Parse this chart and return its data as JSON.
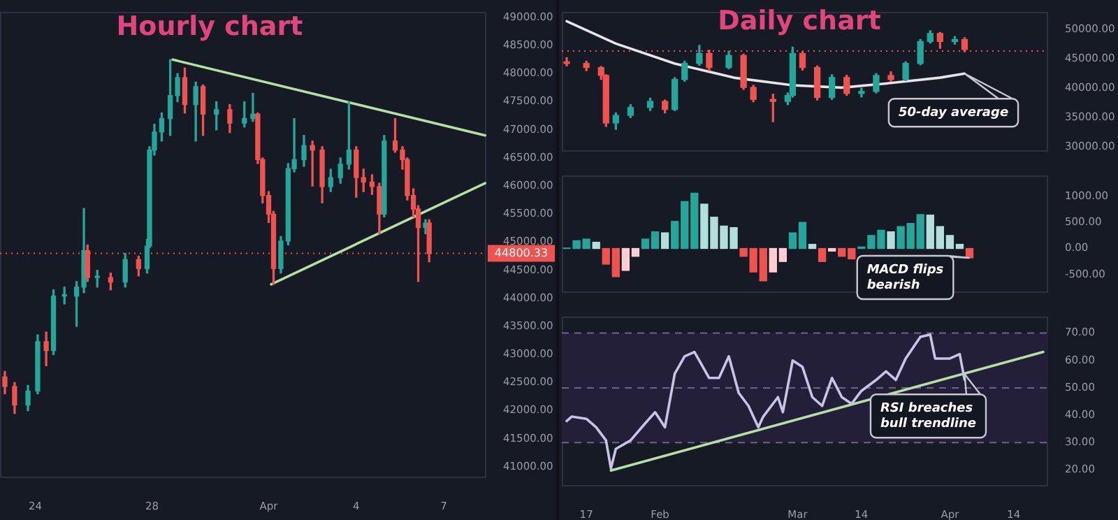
{
  "chart_data": [
    {
      "type": "candlestick",
      "title": "Hourly chart",
      "xlim": [
        "--03-22T19:00",
        "--04-08T11:00"
      ],
      "xticks": [
        {
          "value": "--03-24",
          "label": "24"
        },
        {
          "value": "--03-28",
          "label": "28"
        },
        {
          "value": "--04-01",
          "label": "Apr"
        },
        {
          "value": "--04-04",
          "label": "4"
        },
        {
          "value": "--04-07",
          "label": "7"
        }
      ],
      "ylim": [
        40800,
        49100
      ],
      "yticks": [
        {
          "value": 49000,
          "label": "49000.00"
        },
        {
          "value": 48500,
          "label": "48500.00"
        },
        {
          "value": 48000,
          "label": "48000.00"
        },
        {
          "value": 47500,
          "label": "47500.00"
        },
        {
          "value": 47000,
          "label": "47000.00"
        },
        {
          "value": 46500,
          "label": "46500.00"
        },
        {
          "value": 46000,
          "label": "46000.00"
        },
        {
          "value": 45500,
          "label": "45500.00"
        },
        {
          "value": 45000,
          "label": "45000.00"
        },
        {
          "value": 44500,
          "label": "44500.00"
        },
        {
          "value": 44000,
          "label": "44000.00"
        },
        {
          "value": 43500,
          "label": "43500.00"
        },
        {
          "value": 43000,
          "label": "43000.00"
        },
        {
          "value": 42500,
          "label": "42500.00"
        },
        {
          "value": 42000,
          "label": "42000.00"
        },
        {
          "value": 41500,
          "label": "41500.00"
        },
        {
          "value": 41000,
          "label": "41000.00"
        }
      ],
      "ref_lines": [
        {
          "axis": "y",
          "value": 44800.33,
          "label": "44800.33",
          "color": "#ef5350",
          "line_style": "dotted"
        }
      ],
      "series": [
        {
          "x": [
            "--03-22T23:00",
            "--03-23T07:00",
            "--03-23T18:00",
            "--03-24T02:00",
            "--03-24T09:00",
            "--03-24T15:00",
            "--03-25T00:00",
            "--03-25T10:00",
            "--03-25T16:00",
            "--03-25T19:00",
            "--03-26T03:00",
            "--03-26T14:00",
            "--03-27T02:00",
            "--03-27T13:00",
            "--03-27T20:00",
            "--03-27T22:00",
            "--03-28T02:00",
            "--03-28T08:00",
            "--03-28T15:00",
            "--03-28T21:00",
            "--03-29T03:00",
            "--03-29T12:00",
            "--03-29T18:00",
            "--03-30T05:00",
            "--03-30T16:00",
            "--03-31T04:00",
            "--03-31T11:00",
            "--03-31T15:00",
            "--03-31T19:00",
            "--04-01T00:00",
            "--04-01T04:00",
            "--04-01T10:00",
            "--04-01T16:00",
            "--04-01T21:00",
            "--04-02T05:00",
            "--04-02T12:00",
            "--04-02T20:00",
            "--04-03T03:00",
            "--04-03T11:00",
            "--04-03T18:00",
            "--04-04T00:00",
            "--04-04T06:00",
            "--04-04T13:00",
            "--04-04T19:00",
            "--04-04T23:00",
            "--04-05T08:00",
            "--04-05T14:00",
            "--04-05T18:00",
            "--04-05T23:00",
            "--04-06T03:00",
            "--04-06T09:00",
            "--04-06T12:00"
          ],
          "ohlc": [
            [
              42600,
              42700,
              42300,
              42430
            ],
            [
              42430,
              42500,
              41950,
              42100
            ],
            [
              42100,
              42450,
              42000,
              42350
            ],
            [
              42350,
              43350,
              42300,
              43230
            ],
            [
              43230,
              43400,
              42800,
              43070
            ],
            [
              43070,
              44150,
              43000,
              44040
            ],
            [
              44040,
              44200,
              43900,
              44040
            ],
            [
              44040,
              44300,
              43500,
              44200
            ],
            [
              44200,
              45600,
              44100,
              44850
            ],
            [
              44850,
              44950,
              44300,
              44370
            ],
            [
              44370,
              44500,
              44200,
              44370
            ],
            [
              44370,
              44450,
              44150,
              44290
            ],
            [
              44290,
              44800,
              44200,
              44690
            ],
            [
              44690,
              44750,
              44400,
              44530
            ],
            [
              44530,
              45050,
              44450,
              44930
            ],
            [
              44930,
              46700,
              44900,
              46640
            ],
            [
              46640,
              47100,
              46550,
              46960
            ],
            [
              46960,
              47300,
              46800,
              47200
            ],
            [
              47200,
              48250,
              46900,
              47610
            ],
            [
              47610,
              48000,
              47500,
              47930
            ],
            [
              47930,
              48100,
              47300,
              47450
            ],
            [
              47450,
              47850,
              46800,
              47770
            ],
            [
              47770,
              47800,
              46900,
              47280
            ],
            [
              47280,
              47500,
              47000,
              47360
            ],
            [
              47360,
              47450,
              46950,
              47120
            ],
            [
              47120,
              47500,
              47050,
              47200
            ],
            [
              47200,
              47650,
              47150,
              47280
            ],
            [
              47280,
              47300,
              46400,
              46470
            ],
            [
              46470,
              46500,
              45700,
              45830
            ],
            [
              45830,
              45900,
              45350,
              45500
            ],
            [
              45500,
              45550,
              44250,
              44530
            ],
            [
              44530,
              45100,
              44450,
              45020
            ],
            [
              45020,
              46400,
              44950,
              46310
            ],
            [
              46310,
              47200,
              46250,
              46470
            ],
            [
              46470,
              46900,
              46350,
              46720
            ],
            [
              46720,
              46800,
              46000,
              46640
            ],
            [
              46640,
              46700,
              45700,
              45990
            ],
            [
              45990,
              46300,
              45900,
              46150
            ],
            [
              46150,
              46500,
              46050,
              46390
            ],
            [
              46390,
              47500,
              46300,
              46640
            ],
            [
              46640,
              46700,
              45800,
              46150
            ],
            [
              46150,
              46300,
              45900,
              46070
            ],
            [
              46070,
              46200,
              45850,
              45990
            ],
            [
              45990,
              46050,
              45150,
              45500
            ],
            [
              45500,
              46900,
              45450,
              46800
            ],
            [
              46800,
              47200,
              46600,
              46640
            ],
            [
              46640,
              46700,
              46300,
              46470
            ],
            [
              46470,
              46500,
              45750,
              45830
            ],
            [
              45830,
              45950,
              45450,
              45590
            ],
            [
              45590,
              45650,
              44300,
              45260
            ],
            [
              45260,
              45400,
              45150,
              45340
            ],
            [
              45340,
              45400,
              44650,
              44800.33
            ]
          ],
          "colors": [
            "#ef5350",
            "#ef5350",
            "#26a69a",
            "#26a69a",
            "#ef5350",
            "#26a69a",
            "#26a69a",
            "#26a69a",
            "#26a69a",
            "#ef5350",
            "#26a69a",
            "#ef5350",
            "#26a69a",
            "#ef5350",
            "#26a69a",
            "#26a69a",
            "#26a69a",
            "#26a69a",
            "#26a69a",
            "#26a69a",
            "#ef5350",
            "#26a69a",
            "#ef5350",
            "#26a69a",
            "#ef5350",
            "#26a69a",
            "#26a69a",
            "#ef5350",
            "#ef5350",
            "#ef5350",
            "#ef5350",
            "#26a69a",
            "#26a69a",
            "#26a69a",
            "#26a69a",
            "#ef5350",
            "#ef5350",
            "#26a69a",
            "#26a69a",
            "#26a69a",
            "#ef5350",
            "#ef5350",
            "#ef5350",
            "#ef5350",
            "#26a69a",
            "#ef5350",
            "#ef5350",
            "#ef5350",
            "#ef5350",
            "#ef5350",
            "#26a69a",
            "#ef5350"
          ]
        },
        {
          "type": "line",
          "x": [
            "--03-28T17:00",
            "--04-08T10:00"
          ],
          "values": [
            48250,
            46900
          ],
          "color": "#b5e0a4"
        },
        {
          "type": "line",
          "x": [
            "--04-01T02:00",
            "--04-08T10:00"
          ],
          "values": [
            44250,
            46050
          ],
          "color": "#b5e0a4"
        }
      ]
    },
    {
      "type": "candlestick",
      "title": "Daily chart",
      "tick_labels": "y",
      "xlim": [
        "--01-12",
        "--04-21"
      ],
      "ylim": [
        29200,
        53000
      ],
      "yticks": [
        {
          "value": 50000,
          "label": "50000.00"
        },
        {
          "value": 45000,
          "label": "45000.00"
        },
        {
          "value": 40000,
          "label": "40000.00"
        },
        {
          "value": 35000,
          "label": "35000.00"
        },
        {
          "value": 30000,
          "label": "30000.00"
        }
      ],
      "ref_lines": [
        {
          "axis": "y",
          "value": 46330,
          "color": "#ef5350",
          "line_style": "dotted"
        }
      ],
      "annotations": [
        {
          "text": "50-day average",
          "x": "--04-04",
          "y": 42500
        }
      ],
      "series": [
        {
          "x": [
            "--01-13",
            "--01-17",
            "--01-20",
            "--01-21",
            "--01-23",
            "--01-26",
            "--01-30",
            "--02-02",
            "--02-04",
            "--02-06",
            "--02-09",
            "--02-11",
            "--02-15",
            "--02-18",
            "--02-20",
            "--02-24",
            "--02-27",
            "--02-28",
            "--03-02",
            "--03-05",
            "--03-08",
            "--03-11",
            "--03-14",
            "--03-17",
            "--03-20",
            "--03-23",
            "--03-26",
            "--03-28",
            "--03-30",
            "--04-02",
            "--04-04"
          ],
          "ohlc": [
            [
              44500,
              45200,
              43800,
              44220
            ],
            [
              44220,
              44600,
              43000,
              43530
            ],
            [
              43530,
              43700,
              41500,
              42180
            ],
            [
              42180,
              42300,
              33500,
              34080
            ],
            [
              34080,
              35800,
              33000,
              35370
            ],
            [
              35370,
              37200,
              35000,
              36730
            ],
            [
              36730,
              38300,
              36200,
              37760
            ],
            [
              37760,
              38000,
              35800,
              36390
            ],
            [
              36390,
              41800,
              36200,
              41490
            ],
            [
              41490,
              44600,
              41200,
              44220
            ],
            [
              44220,
              47300,
              43900,
              45920
            ],
            [
              45920,
              46500,
              43000,
              43530
            ],
            [
              43530,
              46300,
              43300,
              45580
            ],
            [
              45580,
              45800,
              39800,
              40140
            ],
            [
              40140,
              40500,
              37700,
              38100
            ],
            [
              38100,
              39000,
              34300,
              37760
            ],
            [
              37760,
              39200,
              37200,
              38780
            ],
            [
              38780,
              47000,
              38500,
              45920
            ],
            [
              45920,
              46200,
              43100,
              43530
            ],
            [
              43530,
              43800,
              38000,
              38430
            ],
            [
              38430,
              42300,
              38100,
              41840
            ],
            [
              41840,
              42200,
              38800,
              39120
            ],
            [
              39120,
              40000,
              38500,
              39460
            ],
            [
              39460,
              42500,
              39200,
              42180
            ],
            [
              42180,
              42800,
              41200,
              41490
            ],
            [
              41490,
              44500,
              41300,
              44220
            ],
            [
              44220,
              48300,
              44000,
              47960
            ],
            [
              47960,
              49800,
              47700,
              49330
            ],
            [
              49330,
              49500,
              46800,
              47960
            ],
            [
              47960,
              48800,
              47500,
              48300
            ],
            [
              48300,
              48600,
              46200,
              46590
            ]
          ],
          "colors": [
            "#ef5350",
            "#ef5350",
            "#ef5350",
            "#ef5350",
            "#26a69a",
            "#26a69a",
            "#26a69a",
            "#ef5350",
            "#26a69a",
            "#26a69a",
            "#26a69a",
            "#ef5350",
            "#26a69a",
            "#ef5350",
            "#ef5350",
            "#ef5350",
            "#26a69a",
            "#26a69a",
            "#ef5350",
            "#ef5350",
            "#26a69a",
            "#ef5350",
            "#26a69a",
            "#26a69a",
            "#ef5350",
            "#26a69a",
            "#26a69a",
            "#26a69a",
            "#ef5350",
            "#26a69a",
            "#ef5350"
          ]
        },
        {
          "type": "line",
          "x": [
            "--01-13",
            "--01-23",
            "--02-04",
            "--02-16",
            "--02-28",
            "--03-10",
            "--03-19",
            "--03-30",
            "--04-04"
          ],
          "values": [
            51400,
            47600,
            44200,
            41800,
            40500,
            40100,
            40800,
            41800,
            42500
          ],
          "color": "#e6e6ea"
        }
      ]
    },
    {
      "type": "bar",
      "tick_labels": "y",
      "xlim": [
        "--01-12",
        "--04-21"
      ],
      "ylim": [
        -850,
        1400
      ],
      "yticks": [
        {
          "value": 1000,
          "label": "1000.00"
        },
        {
          "value": 500,
          "label": "500.00"
        },
        {
          "value": 0,
          "label": "0.00"
        },
        {
          "value": -500,
          "label": "-500.00"
        }
      ],
      "annotations": [
        {
          "text": "MACD flips bearish",
          "x": "--04-05",
          "y": -180
        }
      ],
      "series": [
        {
          "x": [
            "--01-13",
            "--01-15",
            "--01-17",
            "--01-19",
            "--01-21",
            "--01-23",
            "--01-25",
            "--01-27",
            "--01-29",
            "--01-31",
            "--02-02",
            "--02-04",
            "--02-06",
            "--02-08",
            "--02-10",
            "--02-12",
            "--02-14",
            "--02-16",
            "--02-18",
            "--02-20",
            "--02-22",
            "--02-24",
            "--02-26",
            "--02-28",
            "--03-02",
            "--03-04",
            "--03-06",
            "--03-08",
            "--03-10",
            "--03-12",
            "--03-14",
            "--03-16",
            "--03-18",
            "--03-20",
            "--03-22",
            "--03-24",
            "--03-26",
            "--03-28",
            "--03-30",
            "--04-01",
            "--04-03",
            "--04-05"
          ],
          "values": [
            10,
            150,
            180,
            120,
            -300,
            -540,
            -420,
            -150,
            180,
            320,
            300,
            520,
            900,
            1060,
            850,
            600,
            430,
            400,
            -150,
            -450,
            -620,
            -450,
            -250,
            300,
            500,
            80,
            -250,
            -50,
            -150,
            -200,
            30,
            250,
            350,
            320,
            420,
            480,
            650,
            640,
            420,
            250,
            80,
            -180
          ],
          "colors": [
            "#26a69a",
            "#26a69a",
            "#26a69a",
            "#b2dfdb",
            "#ef5350",
            "#ef5350",
            "#ffcdd2",
            "#ffcdd2",
            "#26a69a",
            "#26a69a",
            "#b2dfdb",
            "#26a69a",
            "#26a69a",
            "#26a69a",
            "#b2dfdb",
            "#b2dfdb",
            "#b2dfdb",
            "#b2dfdb",
            "#ef5350",
            "#ef5350",
            "#ef5350",
            "#ffcdd2",
            "#ffcdd2",
            "#26a69a",
            "#26a69a",
            "#b2dfdb",
            "#ef5350",
            "#ffcdd2",
            "#ef5350",
            "#ef5350",
            "#26a69a",
            "#26a69a",
            "#26a69a",
            "#b2dfdb",
            "#26a69a",
            "#26a69a",
            "#26a69a",
            "#b2dfdb",
            "#b2dfdb",
            "#b2dfdb",
            "#b2dfdb",
            "#ef5350"
          ]
        }
      ]
    },
    {
      "type": "line",
      "xlim": [
        "--01-12",
        "--04-21"
      ],
      "xticks": [
        {
          "value": "--01-17",
          "label": "17"
        },
        {
          "value": "--02-01",
          "label": "Feb"
        },
        {
          "value": "--03-01",
          "label": "Mar"
        },
        {
          "value": "--03-14",
          "label": "14"
        },
        {
          "value": "--04-01",
          "label": "Apr"
        },
        {
          "value": "--04-14",
          "label": "14"
        }
      ],
      "ylim": [
        14,
        76
      ],
      "yticks": [
        {
          "value": 70,
          "label": "70.00"
        },
        {
          "value": 60,
          "label": "60.00"
        },
        {
          "value": 50,
          "label": "50.00"
        },
        {
          "value": 40,
          "label": "40.00"
        },
        {
          "value": 30,
          "label": "30.00"
        },
        {
          "value": 20,
          "label": "20.00"
        }
      ],
      "bands": [
        {
          "axis": "y",
          "from": 30,
          "to": 70,
          "color": "#241f38"
        }
      ],
      "ref_lines": [
        {
          "axis": "y",
          "value": 70,
          "color": "#6b6688",
          "line_style": "dashed"
        },
        {
          "axis": "y",
          "value": 50,
          "color": "#6b6688",
          "line_style": "dashed"
        },
        {
          "axis": "y",
          "value": 30,
          "color": "#6b6688",
          "line_style": "dashed"
        }
      ],
      "annotations": [
        {
          "text": "RSI breaches bull trendline",
          "x": "--04-04",
          "y": 55
        }
      ],
      "series": [
        {
          "x": [
            "--01-13",
            "--01-14",
            "--01-17",
            "--01-19",
            "--01-21",
            "--01-22",
            "--01-23",
            "--01-26",
            "--01-29",
            "--01-31",
            "--02-02",
            "--02-04",
            "--02-06",
            "--02-08",
            "--02-11",
            "--02-13",
            "--02-15",
            "--02-17",
            "--02-19",
            "--02-21",
            "--02-22",
            "--02-25",
            "--02-26",
            "--02-28",
            "--03-02",
            "--03-04",
            "--03-06",
            "--03-08",
            "--03-10",
            "--03-12",
            "--03-14",
            "--03-17",
            "--03-19",
            "--03-21",
            "--03-23",
            "--03-26",
            "--03-28",
            "--03-29",
            "--04-01",
            "--04-03",
            "--04-04"
          ],
          "values": [
            37.9,
            39.5,
            38.7,
            35.6,
            30.8,
            20.6,
            27.7,
            30.8,
            37.1,
            41.1,
            35.6,
            55.2,
            61.5,
            63.1,
            53.6,
            53.6,
            61.5,
            48.2,
            43.4,
            35.6,
            39.5,
            46.6,
            41.1,
            60,
            57.6,
            46.6,
            43.4,
            53.6,
            46.6,
            44.2,
            48.9,
            52.9,
            56,
            52.9,
            60.7,
            68.6,
            69.4,
            60.7,
            60.7,
            62.3,
            52.9
          ],
          "color": "#c9c3e6"
        },
        {
          "type": "line",
          "x": [
            "--01-22",
            "--04-20"
          ],
          "values": [
            19.8,
            63.1
          ],
          "color": "#b5e0a4"
        }
      ]
    }
  ]
}
